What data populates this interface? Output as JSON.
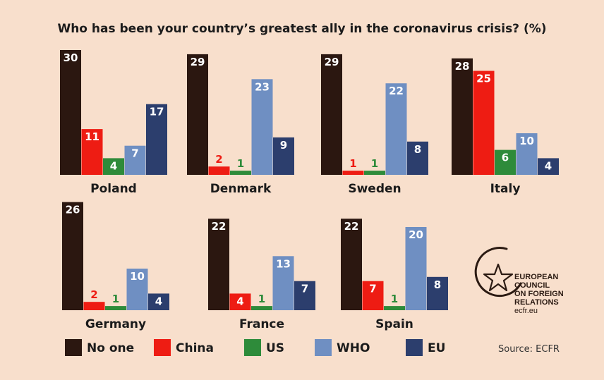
{
  "chart_data": {
    "type": "bar",
    "title": "Who has been your country’s greatest ally in the coronavirus crisis? (%)",
    "categories": [
      "No one",
      "China",
      "US",
      "WHO",
      "EU"
    ],
    "colors": {
      "No one": "#2b1710",
      "China": "#ee1c13",
      "US": "#2e8b3a",
      "WHO": "#6f8fc2",
      "EU": "#2c3e6d"
    },
    "panels": [
      {
        "country": "Poland",
        "values": [
          30,
          11,
          4,
          7,
          17
        ]
      },
      {
        "country": "Denmark",
        "values": [
          29,
          2,
          1,
          23,
          9
        ]
      },
      {
        "country": "Sweden",
        "values": [
          29,
          1,
          1,
          22,
          8
        ]
      },
      {
        "country": "Italy",
        "values": [
          28,
          25,
          6,
          10,
          4
        ]
      },
      {
        "country": "Germany",
        "values": [
          26,
          2,
          1,
          10,
          4
        ]
      },
      {
        "country": "France",
        "values": [
          22,
          4,
          1,
          13,
          7
        ]
      },
      {
        "country": "Spain",
        "values": [
          22,
          7,
          1,
          20,
          8
        ]
      }
    ],
    "legend": [
      "No one",
      "China",
      "US",
      "WHO",
      "EU"
    ],
    "legend_position": "bottom"
  },
  "source": "Source: ECFR",
  "logo": {
    "lines": [
      "EUROPEAN",
      "COUNCIL",
      "ON FOREIGN",
      "RELATIONS"
    ],
    "url": "ecfr.eu"
  }
}
